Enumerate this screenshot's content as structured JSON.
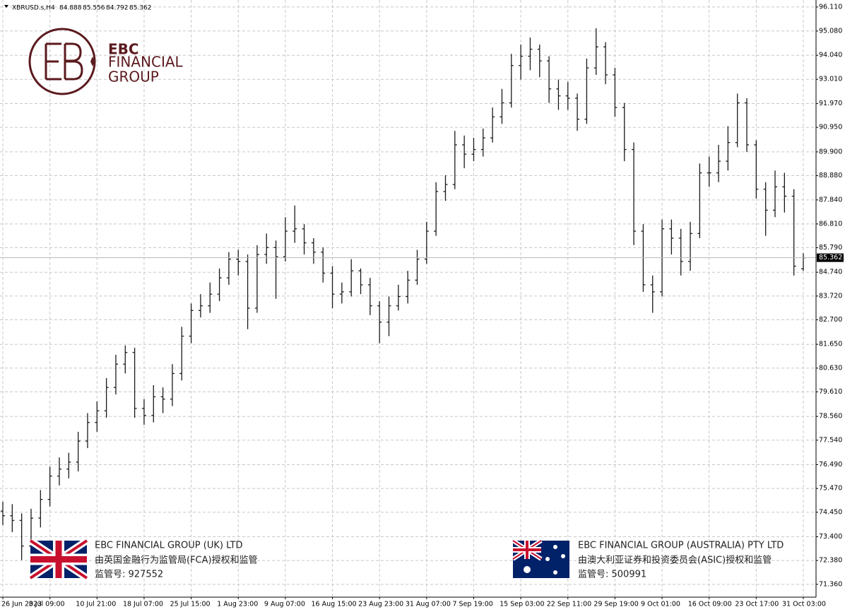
{
  "chart_data": {
    "type": "ohlc",
    "symbol": "XBRUSD.s,H4",
    "color": "#1a1a1a",
    "grid": true,
    "x": [
      "26 Jun 2023",
      null,
      null,
      null,
      null,
      "3 Jul 09:00",
      null,
      null,
      null,
      null,
      "10 Jul 21:00",
      null,
      null,
      null,
      null,
      "18 Jul 07:00",
      null,
      null,
      null,
      null,
      "25 Jul 15:00",
      null,
      null,
      null,
      null,
      "1 Aug 23:00",
      null,
      null,
      null,
      null,
      "9 Aug 07:00",
      null,
      null,
      null,
      null,
      "16 Aug 15:00",
      null,
      null,
      null,
      null,
      "23 Aug 23:00",
      null,
      null,
      null,
      null,
      "31 Aug 07:00",
      null,
      null,
      null,
      null,
      "7 Sep 19:00",
      null,
      null,
      null,
      null,
      "15 Sep 03:00",
      null,
      null,
      null,
      null,
      "22 Sep 11:00",
      null,
      null,
      null,
      null,
      "29 Sep 19:00",
      null,
      null,
      null,
      null,
      "9 Oct 01:00",
      null,
      null,
      null,
      null,
      "16 Oct 09:00",
      null,
      null,
      null,
      null,
      "23 Oct 17:00",
      null,
      null,
      null,
      null,
      "31 Oct 03:00"
    ],
    "open": [
      74.5,
      74.3,
      74.1,
      73.0,
      74.2,
      75.0,
      76.0,
      76.3,
      76.6,
      77.5,
      78.3,
      78.8,
      79.8,
      80.8,
      81.3,
      78.9,
      78.6,
      79.4,
      79.3,
      80.4,
      82.0,
      83.1,
      83.3,
      83.8,
      84.5,
      85.3,
      85.2,
      83.2,
      85.5,
      85.8,
      85.4,
      86.5,
      86.6,
      86.0,
      85.6,
      84.7,
      83.8,
      83.9,
      84.8,
      84.2,
      83.3,
      82.6,
      83.3,
      83.7,
      84.4,
      85.3,
      86.5,
      88.2,
      88.5,
      90.2,
      89.8,
      90.0,
      90.5,
      91.4,
      92.0,
      93.6,
      94.0,
      94.3,
      93.8,
      92.6,
      92.3,
      92.2,
      91.3,
      93.5,
      94.4,
      93.2,
      91.8,
      90.0,
      86.5,
      84.2,
      83.9,
      86.6,
      86.2,
      85.2,
      86.4,
      89.0,
      89.0,
      89.5,
      90.3,
      92.0,
      90.2,
      88.3,
      87.4,
      88.4,
      88.0,
      84.888
    ],
    "high": [
      74.9,
      74.8,
      74.4,
      74.6,
      75.4,
      76.4,
      76.8,
      77.0,
      77.9,
      78.7,
      79.2,
      80.2,
      81.2,
      81.6,
      81.5,
      79.3,
      79.9,
      79.8,
      80.8,
      82.4,
      83.4,
      83.8,
      84.3,
      84.9,
      85.6,
      85.7,
      85.5,
      85.9,
      86.4,
      86.1,
      87.1,
      87.6,
      86.8,
      86.2,
      85.8,
      85.0,
      84.3,
      85.3,
      84.9,
      84.5,
      83.5,
      83.7,
      84.2,
      84.8,
      85.7,
      86.9,
      88.6,
      88.9,
      90.8,
      90.6,
      90.5,
      90.9,
      91.8,
      92.6,
      94.1,
      94.5,
      94.8,
      94.5,
      94.0,
      93.0,
      92.9,
      92.4,
      93.9,
      95.2,
      94.6,
      93.5,
      92.0,
      90.3,
      86.8,
      84.6,
      87.0,
      87.0,
      86.6,
      86.9,
      89.4,
      89.7,
      90.2,
      91.0,
      92.4,
      92.2,
      90.4,
      88.6,
      89.1,
      89.0,
      88.3,
      85.556
    ],
    "low": [
      73.9,
      73.6,
      72.4,
      72.7,
      73.8,
      74.7,
      75.6,
      75.9,
      76.2,
      77.2,
      77.9,
      78.5,
      79.5,
      80.4,
      78.5,
      78.2,
      78.3,
      78.7,
      79.0,
      80.1,
      81.7,
      82.8,
      83.0,
      83.5,
      84.2,
      84.6,
      82.3,
      83.0,
      85.1,
      83.6,
      85.2,
      86.0,
      85.5,
      85.1,
      84.3,
      83.2,
      83.4,
      83.7,
      83.8,
      82.9,
      81.7,
      82.0,
      83.1,
      83.4,
      84.2,
      85.1,
      86.3,
      87.8,
      88.3,
      89.2,
      89.5,
      89.7,
      90.3,
      91.1,
      91.8,
      93.0,
      93.4,
      93.1,
      92.0,
      91.7,
      91.7,
      90.8,
      91.1,
      93.2,
      92.8,
      91.4,
      89.5,
      85.9,
      83.9,
      83.0,
      83.7,
      85.5,
      84.6,
      84.8,
      86.2,
      88.4,
      88.6,
      89.1,
      90.1,
      89.9,
      87.9,
      86.3,
      87.1,
      87.3,
      84.6,
      84.792
    ],
    "close": [
      74.3,
      74.1,
      73.0,
      74.2,
      75.0,
      76.0,
      76.3,
      76.6,
      77.5,
      78.3,
      78.8,
      79.8,
      80.8,
      81.3,
      78.9,
      78.6,
      79.4,
      79.3,
      80.4,
      82.0,
      83.1,
      83.3,
      83.8,
      84.5,
      85.3,
      85.2,
      83.2,
      85.5,
      85.8,
      85.4,
      86.5,
      86.6,
      86.0,
      85.6,
      84.7,
      83.8,
      83.9,
      84.8,
      84.2,
      83.3,
      82.6,
      83.3,
      83.7,
      84.4,
      85.3,
      86.5,
      88.2,
      88.5,
      90.2,
      89.8,
      90.0,
      90.5,
      91.4,
      92.0,
      93.6,
      94.0,
      94.3,
      93.8,
      92.6,
      92.3,
      92.2,
      91.3,
      93.5,
      94.4,
      93.2,
      91.8,
      90.0,
      86.5,
      84.2,
      83.9,
      86.6,
      86.2,
      85.2,
      86.4,
      89.0,
      89.0,
      89.5,
      90.3,
      92.0,
      90.2,
      88.3,
      87.4,
      88.4,
      88.0,
      85.0,
      85.362
    ],
    "ylim": [
      70.81,
      96.41
    ],
    "yticks": [
      {
        "value": 96.11,
        "label": "96.110"
      },
      {
        "value": 95.08,
        "label": "95.080"
      },
      {
        "value": 94.04,
        "label": "94.040"
      },
      {
        "value": 93.01,
        "label": "93.010"
      },
      {
        "value": 91.97,
        "label": "91.970"
      },
      {
        "value": 90.95,
        "label": "90.950"
      },
      {
        "value": 89.9,
        "label": "89.900"
      },
      {
        "value": 88.88,
        "label": "88.880"
      },
      {
        "value": 87.84,
        "label": "87.840"
      },
      {
        "value": 86.81,
        "label": "86.810"
      },
      {
        "value": 85.79,
        "label": "85.790"
      },
      {
        "value": 84.74,
        "label": "84.740"
      },
      {
        "value": 83.72,
        "label": "83.720"
      },
      {
        "value": 82.7,
        "label": "82.700"
      },
      {
        "value": 81.65,
        "label": "81.650"
      },
      {
        "value": 80.63,
        "label": "80.630"
      },
      {
        "value": 79.61,
        "label": "79.610"
      },
      {
        "value": 78.56,
        "label": "78.560"
      },
      {
        "value": 77.54,
        "label": "77.540"
      },
      {
        "value": 76.49,
        "label": "76.490"
      },
      {
        "value": 75.47,
        "label": "75.470"
      },
      {
        "value": 74.45,
        "label": "74.450"
      },
      {
        "value": 73.4,
        "label": "73.400"
      },
      {
        "value": 72.38,
        "label": "72.380"
      },
      {
        "value": 71.36,
        "label": "71.360"
      }
    ]
  },
  "branding": {
    "logo_line1": "EBC",
    "logo_line2": "FINANCIAL",
    "logo_line3": "GROUP",
    "uk": {
      "name": "EBC FINANCIAL GROUP (UK) LTD",
      "regulator": "由英国金融行为监管局(FCA)授权和监管",
      "license": "监管号: 927552"
    },
    "au": {
      "name": "EBC FINANCIAL GROUP (AUSTRALIA) PTY LTD",
      "regulator": "由澳大利亚证券和投资委员会(ASIC)授权和监管",
      "license": "监管号: 500991"
    }
  }
}
